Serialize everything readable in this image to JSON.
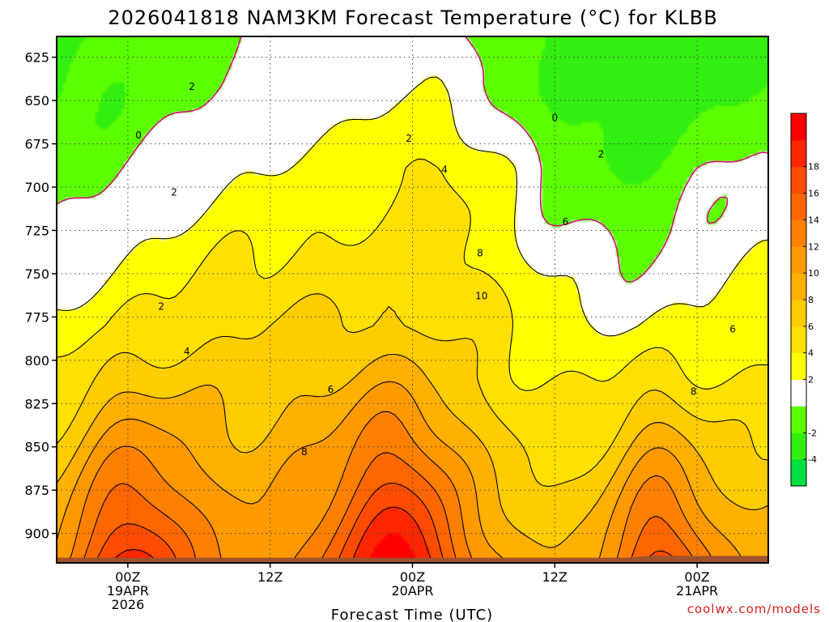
{
  "chart_data": {
    "type": "contour",
    "title": "2026041818 NAM3KM Forecast Temperature (°C) for KLBB",
    "xlabel": "Forecast Time (UTC)",
    "ylabel": "",
    "credit": "coolwx.com/models",
    "ylim": [
      613,
      917
    ],
    "y_ticks": [
      625,
      650,
      675,
      700,
      725,
      750,
      775,
      800,
      825,
      850,
      875,
      900
    ],
    "x_ticks": [
      {
        "line1": "00Z",
        "line2": "19APR",
        "line3": "2026",
        "pos": 0.1
      },
      {
        "line1": "12Z",
        "line2": "",
        "line3": "",
        "pos": 0.3
      },
      {
        "line1": "00Z",
        "line2": "20APR",
        "line3": "",
        "pos": 0.5
      },
      {
        "line1": "12Z",
        "line2": "",
        "line3": "",
        "pos": 0.7
      },
      {
        "line1": "00Z",
        "line2": "21APR",
        "line3": "",
        "pos": 0.9
      }
    ],
    "colorbar": {
      "levels": [
        -6,
        -4,
        -2,
        0,
        2,
        4,
        6,
        8,
        10,
        12,
        14,
        16,
        18,
        20
      ],
      "colors": [
        "#00e040",
        "#33ee11",
        "#5cff00",
        "#ffffff",
        "#ffff00",
        "#ffe000",
        "#ffcc00",
        "#ffb000",
        "#ff9900",
        "#ff8000",
        "#ff6600",
        "#ff4c00",
        "#ff2600",
        "#ff0000"
      ],
      "labels": [
        "-4",
        "-2",
        "2",
        "4",
        "6",
        "8",
        "10",
        "12",
        "14",
        "16",
        "18"
      ],
      "ground_color": "#a0522d",
      "zero_contour_color": "#cc1177"
    },
    "contour_labels": [
      {
        "text": "2",
        "x": 0.19,
        "y": 642
      },
      {
        "text": "0",
        "x": 0.115,
        "y": 670
      },
      {
        "text": "0",
        "x": 0.7,
        "y": 660
      },
      {
        "text": "2",
        "x": 0.165,
        "y": 703
      },
      {
        "text": "2",
        "x": 0.495,
        "y": 672
      },
      {
        "text": "2",
        "x": 0.765,
        "y": 681
      },
      {
        "text": "4",
        "x": 0.545,
        "y": 690
      },
      {
        "text": "6",
        "x": 0.715,
        "y": 720
      },
      {
        "text": "8",
        "x": 0.595,
        "y": 738
      },
      {
        "text": "10",
        "x": 0.597,
        "y": 763
      },
      {
        "text": "2",
        "x": 0.147,
        "y": 769
      },
      {
        "text": "4",
        "x": 0.183,
        "y": 795
      },
      {
        "text": "6",
        "x": 0.385,
        "y": 817
      },
      {
        "text": "8",
        "x": 0.348,
        "y": 853
      },
      {
        "text": "8",
        "x": 0.895,
        "y": 818
      },
      {
        "text": "6",
        "x": 0.95,
        "y": 782
      }
    ],
    "surface_pressure": [
      914,
      914,
      914,
      914,
      914,
      914,
      914,
      914,
      914,
      914,
      914,
      914,
      914,
      914,
      914,
      914,
      914,
      914,
      914,
      914,
      914,
      914,
      914,
      914,
      914,
      913,
      913,
      913,
      913,
      913,
      913
    ]
  }
}
